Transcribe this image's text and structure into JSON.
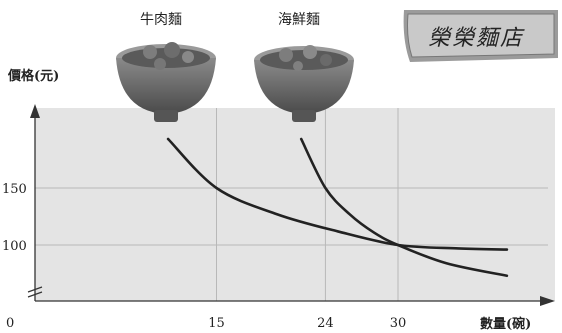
{
  "shop_sign": "榮榮麵店",
  "chart_data": {
    "type": "line",
    "xlabel": "數量(碗)",
    "ylabel": "價格(元)",
    "origin_label": "0",
    "x_ticks": [
      15,
      24,
      30
    ],
    "y_ticks": [
      150,
      100
    ],
    "axis_break": true,
    "grid": true,
    "xlim": [
      0,
      40
    ],
    "ylim": [
      60,
      200
    ],
    "series": [
      {
        "name": "牛肉麵",
        "color": "#222222",
        "points": [
          [
            11,
            193
          ],
          [
            15,
            150
          ],
          [
            20,
            127
          ],
          [
            25,
            112
          ],
          [
            30,
            100
          ],
          [
            35,
            97
          ],
          [
            39,
            96
          ]
        ]
      },
      {
        "name": "海鮮麵",
        "color": "#222222",
        "points": [
          [
            22,
            193
          ],
          [
            24,
            150
          ],
          [
            26,
            127
          ],
          [
            28,
            111
          ],
          [
            30,
            100
          ],
          [
            34,
            84
          ],
          [
            39,
            73
          ]
        ]
      }
    ]
  }
}
